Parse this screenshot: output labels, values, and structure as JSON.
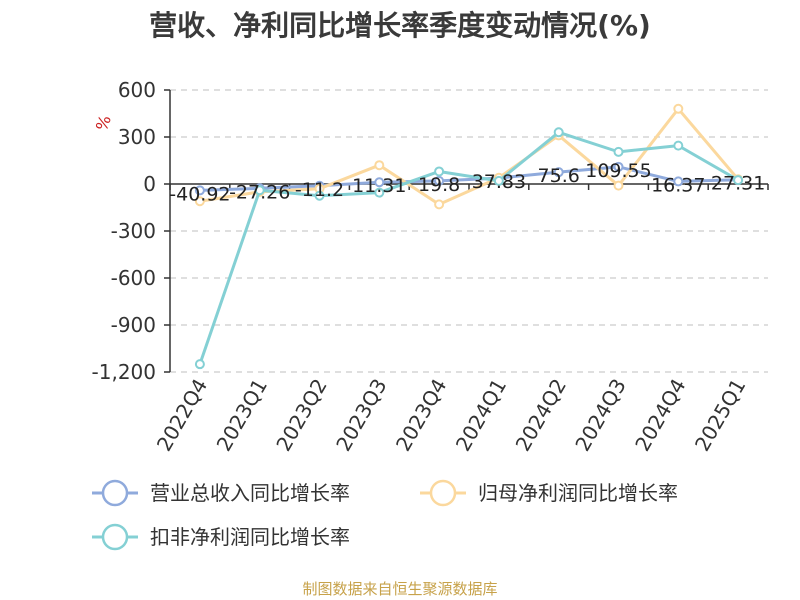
{
  "title": "营收、净利同比增长率季度变动情况(%)",
  "source_note": "制图数据来自恒生聚源数据库",
  "colors": {
    "revenue": "#8faadc",
    "net_profit": "#fbd89d",
    "deducted_profit": "#84d0d4",
    "grid": "#cccccc",
    "axis": "#333333",
    "unit_mark": "#cc2222"
  },
  "chart_data": {
    "type": "line",
    "title": "营收、净利同比增长率季度变动情况(%)",
    "ylabel": "%",
    "ylim": [
      -1200,
      600
    ],
    "yticks": [
      600,
      300,
      0,
      -300,
      -600,
      -900,
      -1200
    ],
    "ytick_labels": [
      "600",
      "300",
      "0",
      "-300",
      "-600",
      "-900",
      "-1,200"
    ],
    "categories": [
      "2022Q4",
      "2023Q1",
      "2023Q2",
      "2023Q3",
      "2023Q4",
      "2024Q1",
      "2024Q2",
      "2024Q3",
      "2024Q4",
      "2025Q1"
    ],
    "grid": true,
    "legend_position": "bottom",
    "series": [
      {
        "name": "营业总收入同比增长率",
        "values": [
          -40.92,
          -27.26,
          -11.2,
          11.31,
          19.8,
          37.83,
          75.6,
          109.55,
          16.37,
          27.31
        ],
        "labels": [
          "-40.92",
          "-27.26",
          "-11.2",
          "11.31",
          "19.8",
          "37.83",
          "75.6",
          "109.55",
          "16.37",
          "27.31"
        ]
      },
      {
        "name": "归母净利润同比增长率",
        "values": [
          -110,
          -50,
          -30,
          120,
          -130,
          40,
          310,
          -10,
          480,
          30
        ]
      },
      {
        "name": "扣非净利润同比增长率",
        "values": [
          -1150,
          -40,
          -75,
          -55,
          80,
          20,
          330,
          205,
          245,
          25
        ]
      }
    ]
  }
}
